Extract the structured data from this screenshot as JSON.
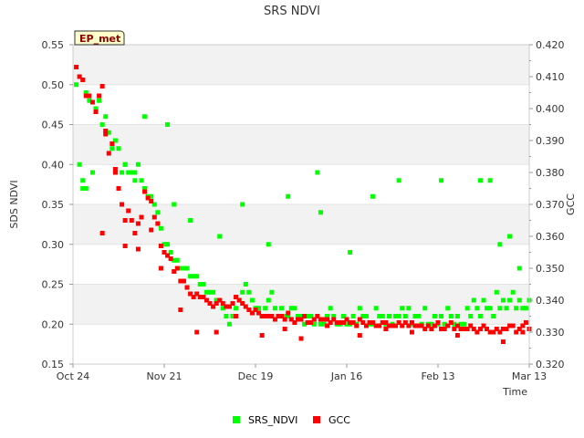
{
  "chart_data": {
    "type": "scatter",
    "title": "SRS NDVI",
    "site_label": "EP_met",
    "xlabel": "Time",
    "ylabel": "SDS NDVI",
    "y2label": "GCC",
    "x_range": [
      0,
      140
    ],
    "x_ticks": [
      {
        "label": "Oct 24",
        "day": 0
      },
      {
        "label": "Nov 21",
        "day": 28
      },
      {
        "label": "Dec 19",
        "day": 56
      },
      {
        "label": "Jan 16",
        "day": 84
      },
      {
        "label": "Feb 13",
        "day": 112
      },
      {
        "label": "Mar 13",
        "day": 140
      }
    ],
    "ylim": [
      0.15,
      0.55
    ],
    "y_ticks": [
      "0.15",
      "0.20",
      "0.25",
      "0.30",
      "0.35",
      "0.40",
      "0.45",
      "0.50",
      "0.55"
    ],
    "y2lim": [
      0.32,
      0.42
    ],
    "y2_ticks": [
      "0.320",
      "0.330",
      "0.340",
      "0.350",
      "0.360",
      "0.370",
      "0.380",
      "0.390",
      "0.400",
      "0.410",
      "0.420"
    ],
    "series": [
      {
        "name": "SRS_NDVI",
        "axis": "left",
        "color": "#00ff00",
        "x": [
          1,
          2,
          3,
          4,
          5,
          6,
          7,
          8,
          9,
          10,
          11,
          12,
          13,
          14,
          15,
          16,
          17,
          18,
          19,
          20,
          21,
          22,
          23,
          24,
          25,
          26,
          27,
          28,
          29,
          30,
          31,
          32,
          33,
          34,
          35,
          36,
          37,
          38,
          39,
          40,
          41,
          42,
          43,
          44,
          45,
          46,
          47,
          48,
          49,
          50,
          51,
          52,
          53,
          54,
          55,
          56,
          57,
          58,
          59,
          60,
          61,
          62,
          63,
          64,
          65,
          66,
          67,
          68,
          69,
          70,
          71,
          72,
          73,
          74,
          75,
          76,
          77,
          78,
          79,
          80,
          81,
          82,
          83,
          84,
          85,
          86,
          87,
          88,
          89,
          90,
          91,
          92,
          93,
          94,
          95,
          96,
          97,
          98,
          99,
          100,
          101,
          102,
          103,
          104,
          105,
          106,
          107,
          108,
          109,
          110,
          111,
          112,
          113,
          114,
          115,
          116,
          117,
          118,
          119,
          120,
          121,
          122,
          123,
          124,
          125,
          126,
          127,
          128,
          129,
          130,
          131,
          132,
          133,
          134,
          135,
          136,
          137,
          138,
          139,
          140,
          3,
          4,
          16,
          19,
          22,
          29,
          31,
          36,
          45,
          52,
          60,
          66,
          75,
          76,
          85,
          92,
          100,
          113,
          125,
          131,
          137,
          134,
          128
        ],
        "values": [
          0.5,
          0.4,
          0.38,
          0.49,
          0.48,
          0.39,
          0.47,
          0.48,
          0.45,
          0.46,
          0.44,
          0.42,
          0.43,
          0.42,
          0.39,
          0.4,
          0.39,
          0.39,
          0.38,
          0.4,
          0.38,
          0.37,
          0.36,
          0.36,
          0.35,
          0.34,
          0.32,
          0.3,
          0.3,
          0.29,
          0.28,
          0.28,
          0.27,
          0.27,
          0.27,
          0.26,
          0.26,
          0.26,
          0.25,
          0.25,
          0.24,
          0.24,
          0.24,
          0.23,
          0.23,
          0.22,
          0.21,
          0.2,
          0.21,
          0.22,
          0.23,
          0.24,
          0.25,
          0.24,
          0.23,
          0.22,
          0.22,
          0.21,
          0.22,
          0.23,
          0.24,
          0.22,
          0.21,
          0.22,
          0.21,
          0.21,
          0.22,
          0.22,
          0.21,
          0.21,
          0.2,
          0.21,
          0.21,
          0.2,
          0.21,
          0.2,
          0.2,
          0.21,
          0.22,
          0.21,
          0.2,
          0.2,
          0.21,
          0.2,
          0.2,
          0.21,
          0.2,
          0.22,
          0.21,
          0.21,
          0.2,
          0.2,
          0.22,
          0.21,
          0.21,
          0.2,
          0.21,
          0.2,
          0.21,
          0.21,
          0.22,
          0.21,
          0.22,
          0.2,
          0.21,
          0.21,
          0.2,
          0.22,
          0.2,
          0.2,
          0.21,
          0.2,
          0.21,
          0.2,
          0.22,
          0.21,
          0.2,
          0.21,
          0.2,
          0.2,
          0.22,
          0.21,
          0.23,
          0.22,
          0.21,
          0.23,
          0.22,
          0.22,
          0.21,
          0.24,
          0.22,
          0.23,
          0.22,
          0.23,
          0.24,
          0.22,
          0.23,
          0.22,
          0.22,
          0.23,
          0.37,
          0.37,
          0.4,
          0.39,
          0.46,
          0.45,
          0.35,
          0.33,
          0.31,
          0.35,
          0.3,
          0.36,
          0.39,
          0.34,
          0.29,
          0.36,
          0.38,
          0.38,
          0.38,
          0.3,
          0.27,
          0.31,
          0.38
        ]
      },
      {
        "name": "GCC",
        "axis": "right",
        "color": "#ff0000",
        "x": [
          1,
          2,
          3,
          4,
          5,
          6,
          7,
          8,
          9,
          10,
          11,
          12,
          13,
          14,
          15,
          16,
          17,
          18,
          19,
          20,
          21,
          22,
          23,
          24,
          25,
          26,
          27,
          28,
          29,
          30,
          31,
          32,
          33,
          34,
          35,
          36,
          37,
          38,
          39,
          40,
          41,
          42,
          43,
          44,
          45,
          46,
          47,
          48,
          49,
          50,
          51,
          52,
          53,
          54,
          55,
          56,
          57,
          58,
          59,
          60,
          61,
          62,
          63,
          64,
          65,
          66,
          67,
          68,
          69,
          70,
          71,
          72,
          73,
          74,
          75,
          76,
          77,
          78,
          79,
          80,
          81,
          82,
          83,
          84,
          85,
          86,
          87,
          88,
          89,
          90,
          91,
          92,
          93,
          94,
          95,
          96,
          97,
          98,
          99,
          100,
          101,
          102,
          103,
          104,
          105,
          106,
          107,
          108,
          109,
          110,
          111,
          112,
          113,
          114,
          115,
          116,
          117,
          118,
          119,
          120,
          121,
          122,
          123,
          124,
          125,
          126,
          127,
          128,
          129,
          130,
          131,
          132,
          133,
          134,
          135,
          136,
          137,
          138,
          139,
          140,
          9,
          10,
          13,
          16,
          20,
          24,
          27,
          33,
          38,
          44,
          50,
          58,
          65,
          70,
          78,
          88,
          96,
          104,
          118,
          132,
          138
        ],
        "values": [
          0.413,
          0.41,
          0.409,
          0.404,
          0.404,
          0.402,
          0.399,
          0.404,
          0.407,
          0.393,
          0.386,
          0.389,
          0.381,
          0.375,
          0.37,
          0.365,
          0.368,
          0.365,
          0.361,
          0.364,
          0.366,
          0.374,
          0.372,
          0.371,
          0.366,
          0.364,
          0.357,
          0.355,
          0.354,
          0.353,
          0.349,
          0.35,
          0.346,
          0.346,
          0.344,
          0.342,
          0.341,
          0.342,
          0.341,
          0.341,
          0.34,
          0.339,
          0.338,
          0.339,
          0.34,
          0.339,
          0.338,
          0.338,
          0.339,
          0.341,
          0.34,
          0.339,
          0.338,
          0.337,
          0.336,
          0.337,
          0.336,
          0.335,
          0.335,
          0.335,
          0.335,
          0.334,
          0.335,
          0.335,
          0.334,
          0.336,
          0.334,
          0.333,
          0.334,
          0.334,
          0.335,
          0.333,
          0.333,
          0.334,
          0.335,
          0.334,
          0.334,
          0.334,
          0.333,
          0.334,
          0.333,
          0.333,
          0.333,
          0.334,
          0.333,
          0.333,
          0.332,
          0.334,
          0.333,
          0.332,
          0.333,
          0.333,
          0.332,
          0.332,
          0.333,
          0.333,
          0.332,
          0.332,
          0.332,
          0.333,
          0.332,
          0.333,
          0.332,
          0.333,
          0.332,
          0.332,
          0.332,
          0.331,
          0.332,
          0.331,
          0.332,
          0.333,
          0.331,
          0.331,
          0.332,
          0.333,
          0.331,
          0.332,
          0.331,
          0.331,
          0.331,
          0.332,
          0.331,
          0.33,
          0.331,
          0.332,
          0.331,
          0.33,
          0.33,
          0.331,
          0.33,
          0.331,
          0.331,
          0.332,
          0.332,
          0.33,
          0.331,
          0.332,
          0.333,
          0.331,
          0.361,
          0.392,
          0.38,
          0.357,
          0.356,
          0.362,
          0.35,
          0.337,
          0.33,
          0.33,
          0.335,
          0.329,
          0.331,
          0.328,
          0.332,
          0.329,
          0.331,
          0.33,
          0.329,
          0.327,
          0.33
        ]
      }
    ],
    "legend": [
      "SRS_NDVI",
      "GCC"
    ],
    "legend_position": "bottom-center",
    "grid": true
  }
}
